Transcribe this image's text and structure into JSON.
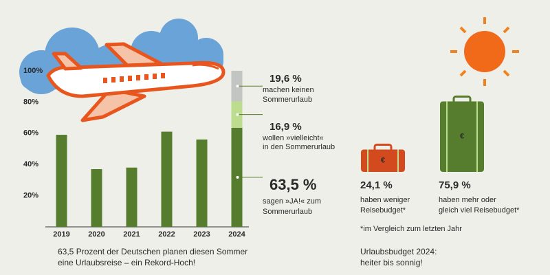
{
  "chart_data": {
    "type": "bar",
    "stacked": true,
    "categories": [
      "2019",
      "2020",
      "2021",
      "2022",
      "2023",
      "2024"
    ],
    "series": [
      {
        "color": "#567d2e",
        "values": [
          59,
          37,
          38,
          61,
          56,
          63.5
        ],
        "value_labels": [
          null,
          null,
          null,
          null,
          null,
          "63,5 %"
        ],
        "note": [
          "sagen »JA!« zum",
          "Sommerurlaub"
        ]
      },
      {
        "color": "#bcdc8e",
        "values": [
          null,
          null,
          null,
          null,
          null,
          16.9
        ],
        "value_labels": [
          null,
          null,
          null,
          null,
          null,
          "16,9 %"
        ],
        "note": [
          "wollen »vielleicht«",
          "in den Sommerurlaub"
        ]
      },
      {
        "color": "#c3c5c3",
        "values": [
          null,
          null,
          null,
          null,
          null,
          19.6
        ],
        "value_labels": [
          null,
          null,
          null,
          null,
          null,
          "19,6 %"
        ],
        "note": [
          "machen keinen",
          "Sommerurlaub"
        ]
      }
    ],
    "ylim": [
      0,
      100
    ],
    "yticks": [
      {
        "value": 20,
        "label": "20%"
      },
      {
        "value": 40,
        "label": "40%"
      },
      {
        "value": 60,
        "label": "60%"
      },
      {
        "value": 80,
        "label": "80%"
      },
      {
        "value": 100,
        "label": "100%"
      }
    ],
    "grid": false,
    "caption": [
      "63,5 Prozent der Deutschen planen diesen Sommer",
      "eine Urlaubsreise – ein Rekord-Hoch!"
    ]
  },
  "budget": {
    "symbol": "€",
    "items": [
      {
        "value": 24.1,
        "value_label": "24,1 %",
        "color": "#d44a1f",
        "text": [
          "haben weniger",
          "Reisebudget*"
        ]
      },
      {
        "value": 75.9,
        "value_label": "75,9 %",
        "color": "#567d2e",
        "text": [
          "haben mehr oder",
          "gleich viel Reisebudget*"
        ]
      }
    ],
    "footnote": "*im Vergleich zum letzten Jahr",
    "caption": [
      "Urlaubsbudget 2024:",
      "heiter bis sonnig!"
    ]
  }
}
